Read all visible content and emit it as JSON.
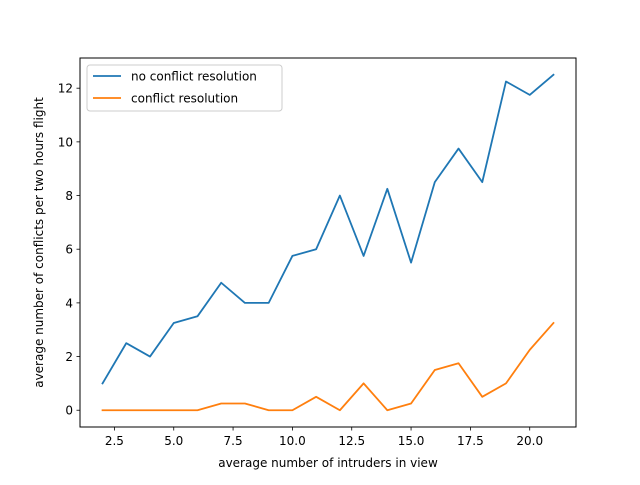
{
  "chart_data": {
    "type": "line",
    "title": "",
    "xlabel": "average number of intruders in view",
    "ylabel": "average number of conflicts per two hours flight",
    "xlim": [
      1.05,
      21.95
    ],
    "ylim": [
      -0.625,
      13.125
    ],
    "x_ticks": [
      2.5,
      5.0,
      7.5,
      10.0,
      12.5,
      15.0,
      17.5,
      20.0
    ],
    "x_tick_labels": [
      "2.5",
      "5.0",
      "7.5",
      "10.0",
      "12.5",
      "15.0",
      "17.5",
      "20.0"
    ],
    "y_ticks": [
      0,
      2,
      4,
      6,
      8,
      10,
      12
    ],
    "y_tick_labels": [
      "0",
      "2",
      "4",
      "6",
      "8",
      "10",
      "12"
    ],
    "grid": false,
    "legend_position": "top-left",
    "x": [
      2,
      3,
      4,
      5,
      6,
      7,
      8,
      9,
      10,
      11,
      12,
      13,
      14,
      15,
      16,
      17,
      18,
      19,
      20,
      21
    ],
    "series": [
      {
        "name": "no conflict resolution",
        "color": "#1f77b4",
        "values": [
          1.0,
          2.5,
          2.0,
          3.25,
          3.5,
          4.75,
          4.0,
          4.0,
          5.75,
          6.0,
          8.0,
          5.75,
          8.25,
          5.5,
          8.5,
          9.75,
          8.5,
          12.25,
          11.75,
          12.5
        ]
      },
      {
        "name": "conflict resolution",
        "color": "#ff7f0e",
        "values": [
          0.0,
          0.0,
          0.0,
          0.0,
          0.0,
          0.25,
          0.25,
          0.0,
          0.0,
          0.5,
          0.0,
          1.0,
          0.0,
          0.25,
          1.5,
          1.75,
          0.5,
          1.0,
          2.25,
          3.25
        ]
      }
    ]
  }
}
